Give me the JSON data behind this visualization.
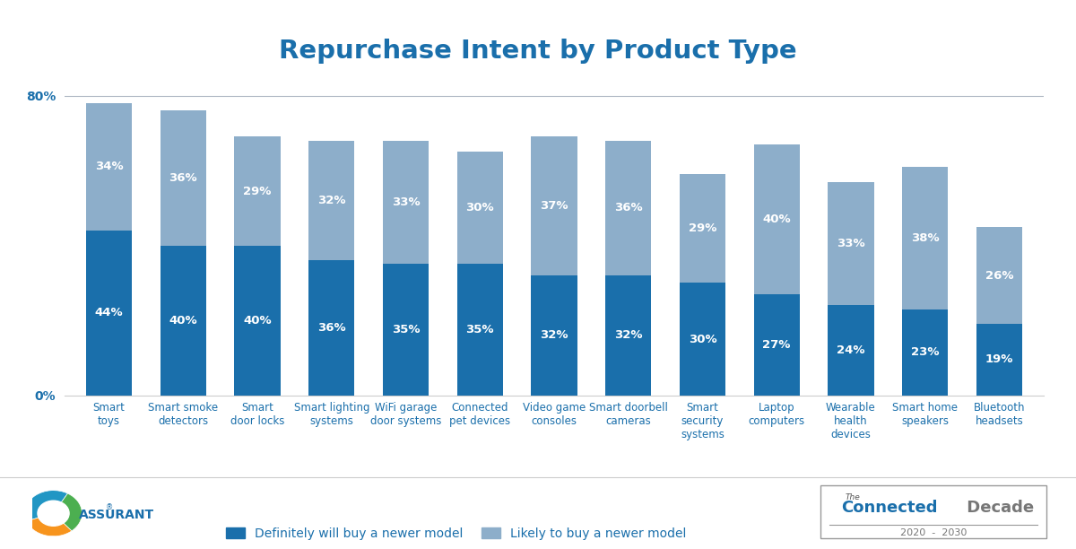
{
  "title": "Repurchase Intent by Product Type",
  "categories": [
    "Smart\ntoys",
    "Smart smoke\ndetectors",
    "Smart\ndoor locks",
    "Smart lighting\nsystems",
    "WiFi garage\ndoor systems",
    "Connected\npet devices",
    "Video game\nconsoles",
    "Smart doorbell\ncameras",
    "Smart\nsecurity\nsystems",
    "Laptop\ncomputers",
    "Wearable\nhealth\ndevices",
    "Smart home\nspeakers",
    "Bluetooth\nheadsets"
  ],
  "definitely": [
    44,
    40,
    40,
    36,
    35,
    35,
    32,
    32,
    30,
    27,
    24,
    23,
    19
  ],
  "likely": [
    34,
    36,
    29,
    32,
    33,
    30,
    37,
    36,
    29,
    40,
    33,
    38,
    26
  ],
  "color_definitely": "#1a6fab",
  "color_likely": "#8daeca",
  "color_title": "#1a6fab",
  "color_axis": "#1a6fab",
  "legend_label_def": "Definitely will buy a newer model",
  "legend_label_likely": "Likely to buy a newer model",
  "ylim": [
    0,
    85
  ],
  "yticks": [
    0,
    80
  ],
  "ytick_labels": [
    "0%",
    "80%"
  ],
  "background_color": "#ffffff",
  "title_fontsize": 21,
  "label_fontsize": 8.5,
  "bar_label_fontsize": 9.5,
  "legend_fontsize": 10,
  "tick_fontsize": 10
}
